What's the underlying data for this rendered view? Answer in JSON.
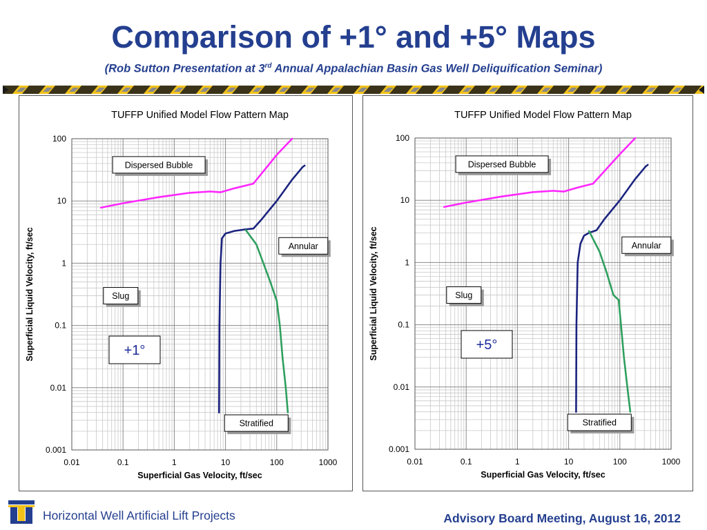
{
  "slide": {
    "title": "Comparison of +1° and +5° Maps",
    "subtitle_pre": "(Rob Sutton Presentation at 3",
    "subtitle_sup": "rd",
    "subtitle_post": " Annual Appalachian Basin Gas Well Deliquification Seminar)",
    "footer_left": "Horizontal Well Artificial Lift Projects",
    "footer_right": "Advisory Board Meeting, August 16, 2012",
    "accent_color": "#243f8f",
    "stripe_colors": [
      "#f2c21a",
      "#1a1a1a",
      "#8a8a8a"
    ]
  },
  "chart_data": [
    {
      "type": "line",
      "title": "TUFFP Unified Model Flow Pattern Map",
      "xlabel": "Superficial Gas Velocity, ft/sec",
      "ylabel": "Superficial Liquid Velocity, ft/sec",
      "xscale": "log",
      "yscale": "log",
      "xlim": [
        0.01,
        1000
      ],
      "ylim": [
        0.001,
        100
      ],
      "xticks": [
        "0.01",
        "0.1",
        "1",
        "10",
        "100",
        "1000"
      ],
      "yticks": [
        "0.001",
        "0.01",
        "0.1",
        "1",
        "10",
        "100"
      ],
      "grid": true,
      "annotation": "+1°",
      "regions": [
        {
          "label": "Dispersed Bubble",
          "x": 0.5,
          "y": 38
        },
        {
          "label": "Annular",
          "x": 330,
          "y": 1.9
        },
        {
          "label": "Slug",
          "x": 0.09,
          "y": 0.3
        },
        {
          "label": "Stratified",
          "x": 40,
          "y": 0.0027
        }
      ],
      "series": [
        {
          "color": "#ff26ff",
          "points": [
            [
              0.037,
              7.8
            ],
            [
              0.1,
              9.2
            ],
            [
              0.5,
              11.5
            ],
            [
              2,
              13.5
            ],
            [
              5,
              14.2
            ],
            [
              8,
              13.8
            ],
            [
              15,
              16
            ],
            [
              35,
              19
            ],
            [
              100,
              55
            ],
            [
              200,
              100
            ]
          ]
        },
        {
          "color": "#1a237e",
          "points": [
            [
              7.5,
              0.004
            ],
            [
              7.6,
              0.1
            ],
            [
              8,
              1
            ],
            [
              8.5,
              2.5
            ],
            [
              10,
              3
            ],
            [
              15,
              3.3
            ],
            [
              25,
              3.5
            ],
            [
              35,
              3.6
            ],
            [
              50,
              5
            ],
            [
              100,
              10
            ],
            [
              200,
              22
            ],
            [
              320,
              35
            ],
            [
              350,
              37
            ]
          ]
        },
        {
          "color": "#2e9f5e",
          "points": [
            [
              25,
              3.4
            ],
            [
              40,
              2
            ],
            [
              55,
              1
            ],
            [
              75,
              0.5
            ],
            [
              100,
              0.25
            ],
            [
              115,
              0.1
            ],
            [
              130,
              0.03
            ],
            [
              150,
              0.01
            ],
            [
              165,
              0.004
            ]
          ]
        }
      ]
    },
    {
      "type": "line",
      "title": "TUFFP Unified Model Flow Pattern Map",
      "xlabel": "Superficial Gas Velocity, ft/sec",
      "ylabel": "Superficial Liquid Velocity, ft/sec",
      "xscale": "log",
      "yscale": "log",
      "xlim": [
        0.01,
        1000
      ],
      "ylim": [
        0.001,
        100
      ],
      "xticks": [
        "0.01",
        "0.1",
        "1",
        "10",
        "100",
        "1000"
      ],
      "yticks": [
        "0.001",
        "0.01",
        "0.1",
        "1",
        "10",
        "100"
      ],
      "grid": true,
      "annotation": "+5°",
      "regions": [
        {
          "label": "Dispersed Bubble",
          "x": 0.5,
          "y": 38
        },
        {
          "label": "Annular",
          "x": 330,
          "y": 1.9
        },
        {
          "label": "Slug",
          "x": 0.09,
          "y": 0.3
        },
        {
          "label": "Stratified",
          "x": 40,
          "y": 0.0027
        }
      ],
      "series": [
        {
          "color": "#ff26ff",
          "points": [
            [
              0.037,
              7.8
            ],
            [
              0.1,
              9.2
            ],
            [
              0.5,
              11.5
            ],
            [
              2,
              13.5
            ],
            [
              5,
              14.2
            ],
            [
              8,
              13.8
            ],
            [
              15,
              16
            ],
            [
              30,
              18.5
            ],
            [
              100,
              55
            ],
            [
              200,
              100
            ]
          ]
        },
        {
          "color": "#1a237e",
          "points": [
            [
              14,
              0.004
            ],
            [
              14.2,
              0.1
            ],
            [
              15,
              1
            ],
            [
              17,
              2
            ],
            [
              20,
              2.7
            ],
            [
              25,
              3
            ],
            [
              35,
              3.3
            ],
            [
              50,
              5
            ],
            [
              100,
              10
            ],
            [
              200,
              22
            ],
            [
              320,
              35
            ],
            [
              350,
              37
            ]
          ]
        },
        {
          "color": "#2e9f5e",
          "points": [
            [
              25,
              3.2
            ],
            [
              40,
              1.5
            ],
            [
              55,
              0.7
            ],
            [
              75,
              0.3
            ],
            [
              95,
              0.25
            ],
            [
              105,
              0.1
            ],
            [
              120,
              0.03
            ],
            [
              140,
              0.01
            ],
            [
              160,
              0.004
            ]
          ]
        }
      ]
    }
  ]
}
